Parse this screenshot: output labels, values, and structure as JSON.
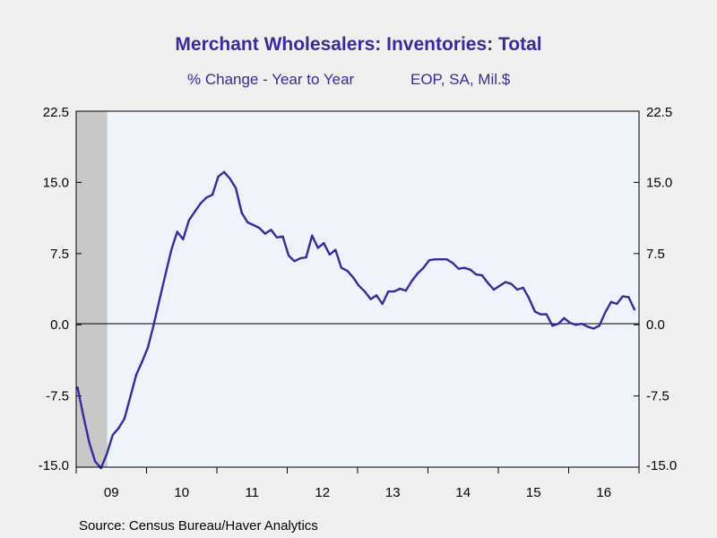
{
  "header": {
    "title": "Merchant Wholesalers: Inventories: Total",
    "subtitle_left": "% Change - Year to Year",
    "subtitle_right": "EOP, SA, Mil.$"
  },
  "footer": {
    "source": "Source:  Census Bureau/Haver Analytics"
  },
  "colors": {
    "line": "#3a2aa0",
    "plot_background": "#eef3fc",
    "page_background": "#f0f0f0",
    "recession_shade": "#c8c8c8"
  },
  "chart_data": {
    "type": "line",
    "title": "Merchant Wholesalers: Inventories: Total",
    "subtitle": "% Change - Year to Year    EOP, SA, Mil.$",
    "xlabel": "",
    "ylabel": "",
    "ylim": [
      -15.0,
      22.5
    ],
    "yticks": [
      "22.5",
      "15.0",
      "7.5",
      "0.0",
      "-7.5",
      "-15.0"
    ],
    "ytick_values": [
      22.5,
      15.0,
      7.5,
      0.0,
      -7.5,
      -15.0
    ],
    "xtick_labels": [
      "09",
      "10",
      "11",
      "12",
      "13",
      "14",
      "15",
      "16"
    ],
    "xlim": [
      "2009-01",
      "2016-12"
    ],
    "grid": false,
    "zero_line": true,
    "recession_shading": [
      "2009-01",
      "2009-06"
    ],
    "series": [
      {
        "x": [
          "2009-01",
          "2009-02",
          "2009-03",
          "2009-04",
          "2009-05",
          "2009-06",
          "2009-07",
          "2009-08",
          "2009-09",
          "2009-10",
          "2009-11",
          "2009-12",
          "2010-01",
          "2010-02",
          "2010-03",
          "2010-04",
          "2010-05",
          "2010-06",
          "2010-07",
          "2010-08",
          "2010-09",
          "2010-10",
          "2010-11",
          "2010-12",
          "2011-01",
          "2011-02",
          "2011-03",
          "2011-04",
          "2011-05",
          "2011-06",
          "2011-07",
          "2011-08",
          "2011-09",
          "2011-10",
          "2011-11",
          "2011-12",
          "2012-01",
          "2012-02",
          "2012-03",
          "2012-04",
          "2012-05",
          "2012-06",
          "2012-07",
          "2012-08",
          "2012-09",
          "2012-10",
          "2012-11",
          "2012-12",
          "2013-01",
          "2013-02",
          "2013-03",
          "2013-04",
          "2013-05",
          "2013-06",
          "2013-07",
          "2013-08",
          "2013-09",
          "2013-10",
          "2013-11",
          "2013-12",
          "2014-01",
          "2014-02",
          "2014-03",
          "2014-04",
          "2014-05",
          "2014-06",
          "2014-07",
          "2014-08",
          "2014-09",
          "2014-10",
          "2014-11",
          "2014-12",
          "2015-01",
          "2015-02",
          "2015-03",
          "2015-04",
          "2015-05",
          "2015-06",
          "2015-07",
          "2015-08",
          "2015-09",
          "2015-10",
          "2015-11",
          "2015-12",
          "2016-01",
          "2016-02",
          "2016-03",
          "2016-04",
          "2016-05",
          "2016-06",
          "2016-07",
          "2016-08",
          "2016-09",
          "2016-10",
          "2016-11",
          "2016-12"
        ],
        "values": [
          -6.6,
          -9.6,
          -12.4,
          -14.4,
          -15.1,
          -13.6,
          -11.6,
          -10.9,
          -9.9,
          -7.6,
          -5.3,
          -3.9,
          -2.4,
          0.0,
          2.7,
          5.3,
          7.9,
          9.8,
          9.0,
          11.0,
          11.9,
          12.8,
          13.4,
          13.7,
          15.6,
          16.1,
          15.4,
          14.4,
          11.8,
          10.8,
          10.5,
          10.2,
          9.6,
          10.0,
          9.2,
          9.3,
          7.3,
          6.7,
          7.0,
          7.1,
          9.4,
          8.1,
          8.6,
          7.4,
          7.9,
          6.0,
          5.7,
          5.0,
          4.1,
          3.5,
          2.7,
          3.1,
          2.2,
          3.5,
          3.5,
          3.8,
          3.6,
          4.6,
          5.4,
          6.0,
          6.8,
          6.9,
          6.9,
          6.9,
          6.5,
          5.9,
          6.0,
          5.8,
          5.3,
          5.2,
          4.4,
          3.7,
          4.1,
          4.5,
          4.3,
          3.7,
          3.9,
          2.8,
          1.4,
          1.1,
          1.1,
          -0.1,
          0.1,
          0.7,
          0.2,
          0.0,
          0.1,
          -0.2,
          -0.4,
          -0.1,
          1.3,
          2.4,
          2.2,
          3.0,
          2.9,
          1.6
        ]
      }
    ]
  }
}
